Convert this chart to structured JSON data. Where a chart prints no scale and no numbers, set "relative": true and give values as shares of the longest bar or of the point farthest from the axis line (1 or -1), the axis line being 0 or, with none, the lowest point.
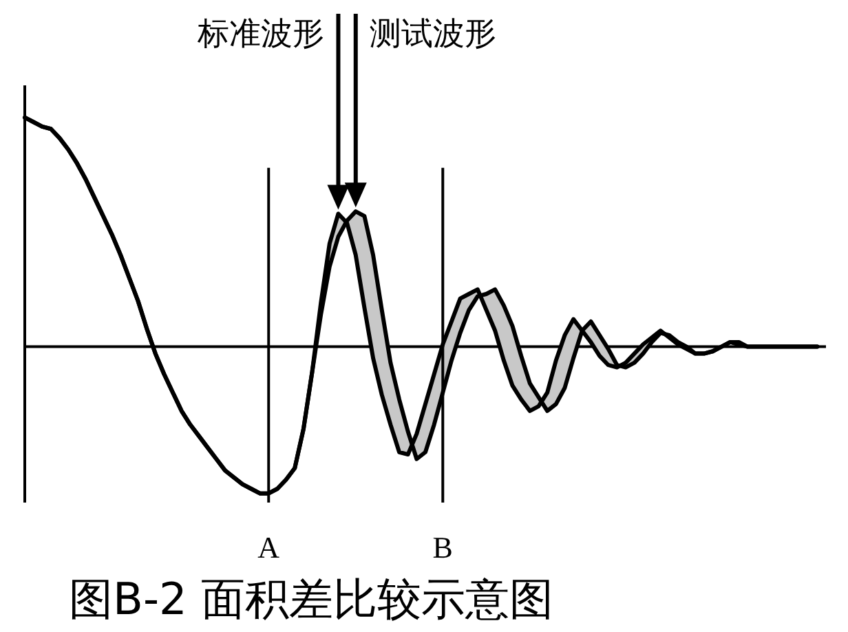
{
  "chart_data": {
    "type": "line",
    "title": "图B-2 面积差比较示意图",
    "relative": true,
    "tick_labels": "x",
    "marker": "none",
    "line_style": "solid",
    "categories": [
      null,
      null,
      null,
      null,
      null,
      null,
      null,
      null,
      null,
      null,
      null,
      null,
      null,
      null,
      null,
      null,
      null,
      null,
      null,
      null,
      null,
      null,
      null,
      null,
      null,
      null,
      null,
      null,
      "A",
      null,
      null,
      null,
      null,
      null,
      null,
      null,
      null,
      null,
      null,
      null,
      null,
      null,
      null,
      null,
      null,
      null,
      null,
      null,
      "B",
      null,
      null,
      null,
      null,
      null,
      null,
      null,
      null,
      null,
      null,
      null,
      null,
      null,
      null,
      null,
      null,
      null,
      null,
      null,
      null,
      null,
      null,
      null,
      null,
      null,
      null,
      null,
      null,
      null,
      null,
      null,
      null,
      null,
      null,
      null,
      null,
      null,
      null,
      null,
      null,
      null,
      null,
      null
    ],
    "series": [
      {
        "color": "#000000",
        "values": [
          1.0,
          0.98,
          0.96,
          0.95,
          0.91,
          0.86,
          0.8,
          0.73,
          0.65,
          0.57,
          0.49,
          0.4,
          0.3,
          0.2,
          0.08,
          -0.03,
          -0.12,
          -0.2,
          -0.28,
          -0.34,
          -0.39,
          -0.44,
          -0.49,
          -0.54,
          -0.57,
          -0.6,
          -0.62,
          -0.64,
          -0.64,
          -0.62,
          -0.58,
          -0.53,
          -0.36,
          -0.11,
          0.19,
          0.45,
          0.58,
          0.54,
          0.4,
          0.17,
          -0.05,
          -0.21,
          -0.34,
          -0.46,
          -0.47,
          -0.38,
          -0.25,
          -0.12,
          0.01,
          0.11,
          0.21,
          0.23,
          0.25,
          0.16,
          0.07,
          -0.06,
          -0.17,
          -0.23,
          -0.28,
          -0.26,
          -0.2,
          -0.06,
          0.05,
          0.12,
          0.07,
          0.02,
          -0.04,
          -0.08,
          -0.09,
          -0.07,
          -0.03,
          0.01,
          0.04,
          0.07,
          0.04,
          0.01,
          -0.01,
          -0.03,
          -0.03,
          -0.02,
          0.0,
          0.02,
          0.01,
          0.0,
          0.0,
          0.0,
          0.0,
          0.0,
          0.0,
          0.0,
          0.0,
          0.0
        ]
      },
      {
        "color": "#000000",
        "values": [
          1.0,
          0.98,
          0.96,
          0.95,
          0.91,
          0.86,
          0.8,
          0.73,
          0.65,
          0.57,
          0.49,
          0.4,
          0.3,
          0.2,
          0.08,
          -0.03,
          -0.12,
          -0.2,
          -0.28,
          -0.34,
          -0.39,
          -0.44,
          -0.49,
          -0.54,
          -0.57,
          -0.6,
          -0.62,
          -0.64,
          -0.64,
          -0.62,
          -0.58,
          -0.53,
          -0.36,
          -0.11,
          0.14,
          0.35,
          0.48,
          0.55,
          0.59,
          0.57,
          0.4,
          0.16,
          -0.07,
          -0.23,
          -0.37,
          -0.49,
          -0.46,
          -0.34,
          -0.2,
          -0.06,
          0.06,
          0.16,
          0.22,
          0.23,
          0.25,
          0.18,
          0.09,
          -0.04,
          -0.16,
          -0.22,
          -0.28,
          -0.25,
          -0.18,
          -0.05,
          0.07,
          0.11,
          0.05,
          -0.01,
          -0.08,
          -0.09,
          -0.07,
          -0.03,
          0.02,
          0.06,
          0.05,
          0.02,
          0.0,
          -0.03,
          -0.03,
          -0.02,
          0.0,
          0.02,
          0.02,
          0.0,
          0.0,
          0.0,
          0.0,
          0.0,
          0.0,
          0.0,
          0.0,
          0.0
        ]
      }
    ],
    "ref_lines": [
      {
        "axis": "x",
        "value": "A",
        "color": "#000000"
      },
      {
        "axis": "x",
        "value": "B",
        "color": "#000000"
      }
    ],
    "annotations": [
      "标准波形",
      "测试波形"
    ]
  }
}
